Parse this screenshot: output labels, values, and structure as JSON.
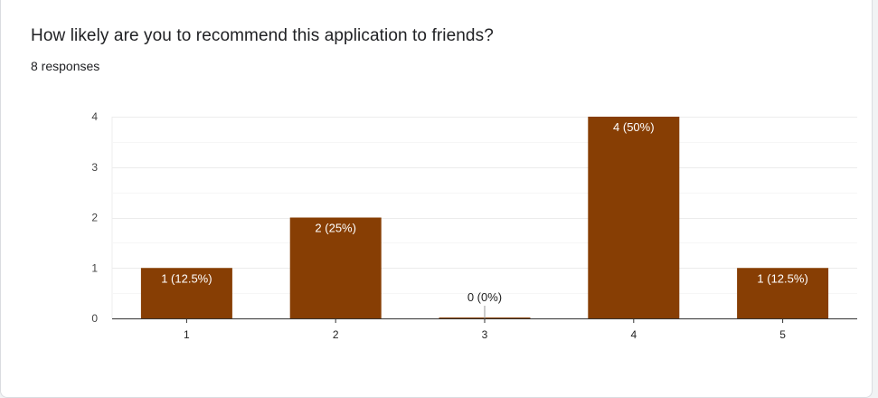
{
  "question": "How likely are you to recommend this application to friends?",
  "responses_label": "8 responses",
  "chart_data": {
    "type": "bar",
    "categories": [
      "1",
      "2",
      "3",
      "4",
      "5"
    ],
    "values": [
      1,
      2,
      0,
      4,
      1
    ],
    "data_labels": [
      "1 (12.5%)",
      "2 (25%)",
      "0 (0%)",
      "4 (50%)",
      "1 (12.5%)"
    ],
    "y_ticks": [
      "0",
      "1",
      "2",
      "3",
      "4"
    ],
    "ylim": [
      0,
      4
    ],
    "grid": true,
    "bar_color": "#873e04",
    "grid_color": "#ececec",
    "axis_color": "#333333"
  }
}
